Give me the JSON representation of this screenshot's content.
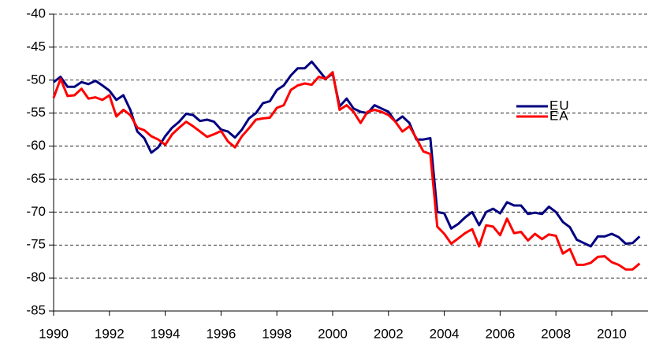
{
  "chart_data": {
    "type": "line",
    "x": [
      1990,
      1990.25,
      1990.5,
      1990.75,
      1991,
      1991.25,
      1991.5,
      1991.75,
      1992,
      1992.25,
      1992.5,
      1992.75,
      1993,
      1993.25,
      1993.5,
      1993.75,
      1994,
      1994.25,
      1994.5,
      1994.75,
      1995,
      1995.25,
      1995.5,
      1995.75,
      1996,
      1996.25,
      1996.5,
      1996.75,
      1997,
      1997.25,
      1997.5,
      1997.75,
      1998,
      1998.25,
      1998.5,
      1998.75,
      1999,
      1999.25,
      1999.5,
      1999.75,
      2000,
      2000.25,
      2000.5,
      2000.75,
      2001,
      2001.25,
      2001.5,
      2001.75,
      2002,
      2002.25,
      2002.5,
      2002.75,
      2003,
      2003.25,
      2003.5,
      2003.75,
      2004,
      2004.25,
      2004.5,
      2004.75,
      2005,
      2005.25,
      2005.5,
      2005.75,
      2006,
      2006.25,
      2006.5,
      2006.75,
      2007,
      2007.25,
      2007.5,
      2007.75,
      2008,
      2008.25,
      2008.5,
      2008.75,
      2009,
      2009.25,
      2009.5,
      2009.75,
      2010,
      2010.25,
      2010.5,
      2010.75,
      2011
    ],
    "series": [
      {
        "name": "EU",
        "color": "#000080",
        "values": [
          -50.3,
          -49.5,
          -51,
          -51,
          -50.3,
          -50.6,
          -50.1,
          -50.8,
          -51.6,
          -53,
          -52.3,
          -54.5,
          -57.8,
          -58.8,
          -61,
          -60.2,
          -58.5,
          -57.2,
          -56.3,
          -55.1,
          -55.3,
          -56.2,
          -56,
          -56.3,
          -57.5,
          -57.8,
          -58.7,
          -57.5,
          -55.8,
          -55,
          -53.5,
          -53.2,
          -51.5,
          -50.8,
          -49.3,
          -48.2,
          -48.2,
          -47.2,
          -48.5,
          -49.8,
          -49,
          -54,
          -52.8,
          -54.3,
          -54.8,
          -55,
          -53.8,
          -54.3,
          -54.8,
          -56.3,
          -55.5,
          -56.5,
          -59,
          -59,
          -58.8,
          -70,
          -70.2,
          -72.5,
          -71.8,
          -70.8,
          -70,
          -72,
          -70,
          -69.5,
          -70.2,
          -68.5,
          -69,
          -69,
          -70.3,
          -70.1,
          -70.3,
          -69.2,
          -70,
          -71.5,
          -72.3,
          -74.2,
          -74.7,
          -75.2,
          -73.7,
          -73.7,
          -73.3,
          -73.8,
          -74.8,
          -74.7,
          -73.7
        ]
      },
      {
        "name": "EA",
        "color": "#ff0000",
        "values": [
          -52.7,
          -49.8,
          -52.4,
          -52.3,
          -51.3,
          -52.8,
          -52.6,
          -53,
          -52.3,
          -55.5,
          -54.5,
          -55.3,
          -57.2,
          -57.6,
          -58.5,
          -59,
          -59.8,
          -58.2,
          -57.2,
          -56.3,
          -57,
          -57.8,
          -58.6,
          -58.2,
          -57.7,
          -59.3,
          -60.2,
          -58.5,
          -57.3,
          -56,
          -55.8,
          -55.7,
          -54.2,
          -53.8,
          -51.5,
          -50.8,
          -50.5,
          -50.7,
          -49.5,
          -49.8,
          -48.8,
          -54.5,
          -53.8,
          -54.8,
          -56.5,
          -54.8,
          -54.5,
          -54.8,
          -55.3,
          -56.3,
          -57.8,
          -57,
          -58.8,
          -60.8,
          -61.2,
          -72.2,
          -73.3,
          -74.8,
          -74,
          -73.2,
          -72.6,
          -75.2,
          -72,
          -72.2,
          -73.5,
          -71,
          -73.2,
          -73,
          -74.3,
          -73.3,
          -74.1,
          -73.4,
          -73.6,
          -76.3,
          -75.6,
          -78,
          -78,
          -77.7,
          -76.8,
          -76.7,
          -77.6,
          -78,
          -78.7,
          -78.7,
          -77.8
        ]
      }
    ],
    "xlim": [
      1990,
      2011.3
    ],
    "xticks": [
      1990,
      1992,
      1994,
      1996,
      1998,
      2000,
      2002,
      2004,
      2006,
      2008,
      2010
    ],
    "ylim": [
      -85,
      -40
    ],
    "yticks": [
      -85,
      -80,
      -75,
      -70,
      -65,
      -60,
      -55,
      -50,
      -45,
      -40
    ],
    "grid": true,
    "legend": "right"
  }
}
